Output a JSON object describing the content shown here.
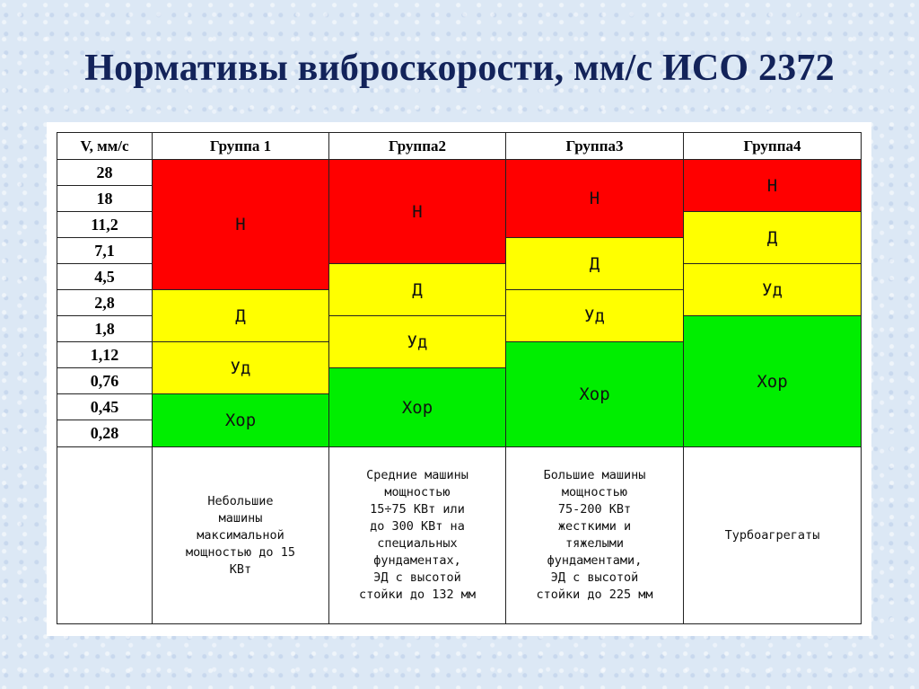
{
  "title": "Нормативы виброскорости, мм/с ИСО 2372",
  "table": {
    "corner_header": "V, мм/с",
    "group_headers": [
      "Группа 1",
      "Группа2",
      "Группа3",
      "Группа4"
    ],
    "velocity_values": [
      "28",
      "18",
      "11,2",
      "7,1",
      "4,5",
      "2,8",
      "1,8",
      "1,12",
      "0,76",
      "0,45",
      "0,28"
    ],
    "zones": {
      "group1": [
        "Н",
        "Д",
        "Уд",
        "Хор"
      ],
      "group2": [
        "Н",
        "Д",
        "Уд",
        "Хор"
      ],
      "group3": [
        "Н",
        "Д",
        "Уд",
        "Хор"
      ],
      "group4": [
        "Н",
        "Д",
        "Уд",
        "Хор"
      ]
    },
    "descriptions": [
      "Небольшие\nмашины\nмаксимальной\nмощностью до 15\nКВт",
      "Средние машины\nмощностью\n15÷75 КВт  или\nдо 300 КВт на\nспециальных\nфундаментах,\nЭД с высотой\nстойки до 132 мм",
      "Большие машины\nмощностью\n75-200 КВт\nжесткими и\nтяжелыми\nфундаментами,\nЭД с высотой\nстойки до 225 мм",
      "Турбоагрегаты"
    ]
  },
  "colors": {
    "unacceptable": "#ff0000",
    "acceptable": "#ffff00",
    "good": "#00ee00",
    "title": "#13235a"
  }
}
